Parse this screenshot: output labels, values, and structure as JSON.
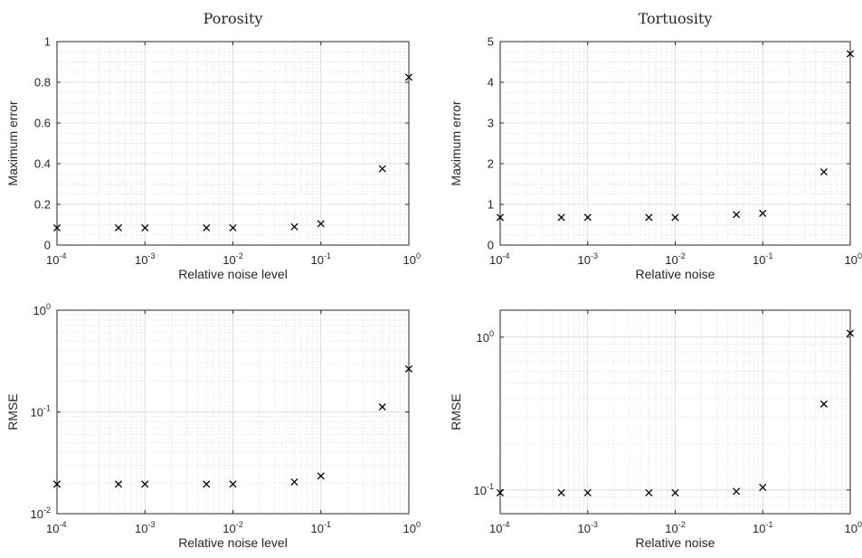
{
  "chart_data": [
    {
      "type": "scatter",
      "title": "Porosity",
      "xlabel": "Relative noise level",
      "ylabel": "Maximum error",
      "xscale": "log",
      "yscale": "linear",
      "xlim": [
        0.0001,
        1
      ],
      "ylim": [
        0,
        1
      ],
      "grid": true,
      "x_ticks": [
        {
          "value": 0.0001,
          "base": "10",
          "exp": "-4"
        },
        {
          "value": 0.001,
          "base": "10",
          "exp": "-3"
        },
        {
          "value": 0.01,
          "base": "10",
          "exp": "-2"
        },
        {
          "value": 0.1,
          "base": "10",
          "exp": "-1"
        },
        {
          "value": 1,
          "base": "10",
          "exp": "0"
        }
      ],
      "y_ticks": [
        {
          "value": 0,
          "label": "0"
        },
        {
          "value": 0.2,
          "label": "0.2"
        },
        {
          "value": 0.4,
          "label": "0.4"
        },
        {
          "value": 0.6,
          "label": "0.6"
        },
        {
          "value": 0.8,
          "label": "0.8"
        },
        {
          "value": 1,
          "label": "1"
        }
      ],
      "marker": "x",
      "x": [
        0.0001,
        0.0005,
        0.001,
        0.005,
        0.01,
        0.05,
        0.1,
        0.5,
        1
      ],
      "y": [
        0.085,
        0.085,
        0.085,
        0.085,
        0.085,
        0.09,
        0.105,
        0.375,
        0.825
      ]
    },
    {
      "type": "scatter",
      "title": "Tortuosity",
      "xlabel": "Relative noise",
      "ylabel": "Maximum error",
      "xscale": "log",
      "yscale": "linear",
      "xlim": [
        0.0001,
        1
      ],
      "ylim": [
        0,
        5
      ],
      "grid": true,
      "x_ticks": [
        {
          "value": 0.0001,
          "base": "10",
          "exp": "-4"
        },
        {
          "value": 0.001,
          "base": "10",
          "exp": "-3"
        },
        {
          "value": 0.01,
          "base": "10",
          "exp": "-2"
        },
        {
          "value": 0.1,
          "base": "10",
          "exp": "-1"
        },
        {
          "value": 1,
          "base": "10",
          "exp": "0"
        }
      ],
      "y_ticks": [
        {
          "value": 0,
          "label": "0"
        },
        {
          "value": 1,
          "label": "1"
        },
        {
          "value": 2,
          "label": "2"
        },
        {
          "value": 3,
          "label": "3"
        },
        {
          "value": 4,
          "label": "4"
        },
        {
          "value": 5,
          "label": "5"
        }
      ],
      "marker": "x",
      "x": [
        0.0001,
        0.0005,
        0.001,
        0.005,
        0.01,
        0.05,
        0.1,
        0.5,
        1
      ],
      "y": [
        0.68,
        0.68,
        0.68,
        0.68,
        0.68,
        0.75,
        0.78,
        1.8,
        4.7
      ]
    },
    {
      "type": "scatter",
      "title": "",
      "xlabel": "Relative noise level",
      "ylabel": "RMSE",
      "xscale": "log",
      "yscale": "log",
      "xlim": [
        0.0001,
        1
      ],
      "ylim": [
        0.01,
        1
      ],
      "grid": true,
      "x_ticks": [
        {
          "value": 0.0001,
          "base": "10",
          "exp": "-4"
        },
        {
          "value": 0.001,
          "base": "10",
          "exp": "-3"
        },
        {
          "value": 0.01,
          "base": "10",
          "exp": "-2"
        },
        {
          "value": 0.1,
          "base": "10",
          "exp": "-1"
        },
        {
          "value": 1,
          "base": "10",
          "exp": "0"
        }
      ],
      "y_ticks": [
        {
          "value": 0.01,
          "base": "10",
          "exp": "-2"
        },
        {
          "value": 0.1,
          "base": "10",
          "exp": "-1"
        },
        {
          "value": 1,
          "base": "10",
          "exp": "0"
        }
      ],
      "marker": "x",
      "x": [
        0.0001,
        0.0005,
        0.001,
        0.005,
        0.01,
        0.05,
        0.1,
        0.5,
        1
      ],
      "y": [
        0.0195,
        0.0195,
        0.0195,
        0.0195,
        0.0195,
        0.0205,
        0.0235,
        0.112,
        0.265
      ]
    },
    {
      "type": "scatter",
      "title": "",
      "xlabel": "Relative noise",
      "ylabel": "RMSE",
      "xscale": "log",
      "yscale": "log",
      "xlim": [
        0.0001,
        1
      ],
      "ylim": [
        0.07,
        1.5
      ],
      "grid": true,
      "x_ticks": [
        {
          "value": 0.0001,
          "base": "10",
          "exp": "-4"
        },
        {
          "value": 0.001,
          "base": "10",
          "exp": "-3"
        },
        {
          "value": 0.01,
          "base": "10",
          "exp": "-2"
        },
        {
          "value": 0.1,
          "base": "10",
          "exp": "-1"
        },
        {
          "value": 1,
          "base": "10",
          "exp": "0"
        }
      ],
      "y_ticks": [
        {
          "value": 0.1,
          "base": "10",
          "exp": "-1"
        },
        {
          "value": 1,
          "base": "10",
          "exp": "0"
        }
      ],
      "marker": "x",
      "x": [
        0.0001,
        0.0005,
        0.001,
        0.005,
        0.01,
        0.05,
        0.1,
        0.5,
        1
      ],
      "y": [
        0.096,
        0.096,
        0.096,
        0.096,
        0.096,
        0.098,
        0.104,
        0.365,
        1.06
      ]
    }
  ]
}
